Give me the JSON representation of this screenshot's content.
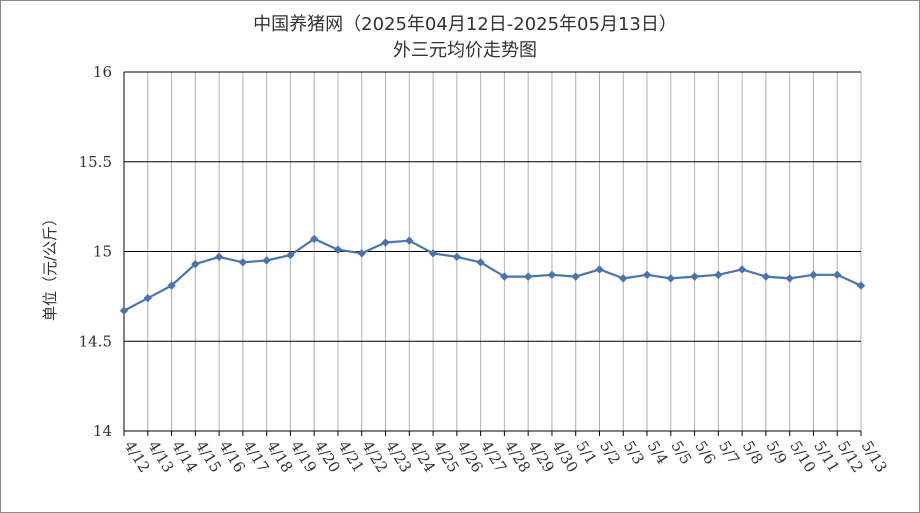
{
  "chart_data": {
    "type": "line",
    "title": "中国养猪网（2025年04月12日-2025年05月13日）",
    "subtitle": "外三元均价走势图",
    "ylabel": "单位（元/公斤）",
    "xlabel": "",
    "ylim": [
      14,
      16
    ],
    "yticks": [
      14,
      14.5,
      15,
      15.5,
      16
    ],
    "ytick_labels": [
      "14",
      "14.5",
      "15",
      "15.5",
      "16"
    ],
    "grid": true,
    "legend": "none",
    "colors": {
      "line": "#4a74b0",
      "grid": "#000000",
      "vgrid": "#b0b0b0"
    },
    "categories": [
      "4/12",
      "4/13",
      "4/14",
      "4/15",
      "4/16",
      "4/17",
      "4/18",
      "4/19",
      "4/20",
      "4/21",
      "4/22",
      "4/23",
      "4/24",
      "4/25",
      "4/26",
      "4/27",
      "4/28",
      "4/29",
      "4/30",
      "5/1",
      "5/2",
      "5/3",
      "5/4",
      "5/5",
      "5/6",
      "5/7",
      "5/8",
      "5/9",
      "5/10",
      "5/11",
      "5/12",
      "5/13"
    ],
    "values": [
      14.67,
      14.74,
      14.81,
      14.93,
      14.97,
      14.94,
      14.95,
      14.98,
      15.07,
      15.01,
      14.99,
      15.05,
      15.06,
      14.99,
      14.97,
      14.94,
      14.86,
      14.86,
      14.87,
      14.86,
      14.9,
      14.85,
      14.87,
      14.85,
      14.86,
      14.87,
      14.9,
      14.86,
      14.85,
      14.87,
      14.87,
      14.81
    ]
  }
}
